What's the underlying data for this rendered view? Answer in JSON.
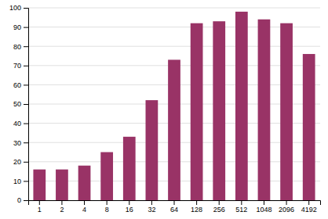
{
  "chart_data": {
    "type": "bar",
    "categories": [
      "1",
      "2",
      "4",
      "8",
      "16",
      "32",
      "64",
      "128",
      "256",
      "512",
      "1048",
      "2096",
      "4192"
    ],
    "values": [
      16,
      16,
      18,
      25,
      33,
      52,
      73,
      92,
      93,
      98,
      94,
      92,
      76
    ],
    "color": "#993366",
    "ylim": [
      0,
      100
    ],
    "yticks": [
      0,
      10,
      20,
      30,
      40,
      50,
      60,
      70,
      80,
      90,
      100
    ],
    "grid": true
  }
}
